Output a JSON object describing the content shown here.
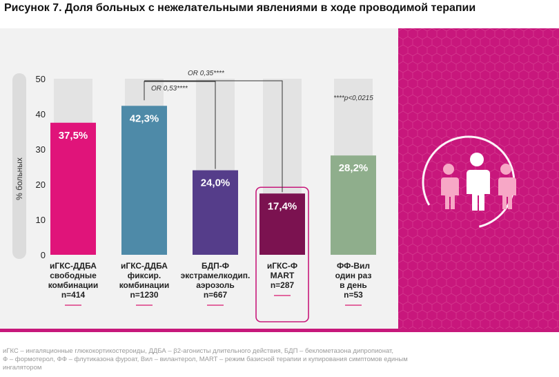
{
  "title": "Рисунок 7. Доля больных с нежелательными явлениями в ходе проводимой терапии",
  "chart_data": {
    "type": "bar",
    "ylabel": "% больных",
    "ylim": [
      0,
      50
    ],
    "yticks": [
      0,
      10,
      20,
      30,
      40,
      50
    ],
    "categories": [
      [
        "иГКС-ДДБА",
        "свободные",
        "комбинации",
        "n=414"
      ],
      [
        "иГКС-ДДБА",
        "фиксир.",
        "комбинации",
        "n=1230"
      ],
      [
        "БДП-Ф",
        "экстрамелкодип.",
        "аэрозоль",
        "n=667"
      ],
      [
        "иГКС-Ф",
        "MART",
        "n=287"
      ],
      [
        "ФФ-Вил",
        "один раз",
        "в день",
        "n=53"
      ]
    ],
    "values": [
      37.5,
      42.3,
      24.0,
      17.4,
      28.2
    ],
    "value_labels": [
      "37,5%",
      "42,3%",
      "24,0%",
      "17,4%",
      "28,2%"
    ],
    "colors": [
      "#e0147a",
      "#4e8aa8",
      "#553d8a",
      "#7b1250",
      "#8fae8c"
    ],
    "highlighted": 3,
    "annotations": {
      "or1": "OR 0,53****",
      "or2": "OR 0,35****",
      "pvalue": "****p<0,0215"
    }
  },
  "footnote": {
    "line1": "иГКС – ингаляционные глюкокортикостероиды, ДДБА – β2-агонисты длительного действия, БДП – беклометазона дипропионат,",
    "line2": "Ф – формотерол, ФФ – флутиказона фуроат, Вил – вилантерол, MART – режим базисной терапии и купирования симптомов единым",
    "line3": "ингалятором"
  },
  "colors": {
    "accent": "#c7187b",
    "panel_bg": "#f2f2f2"
  },
  "icons": {
    "right_panel": "people-group-icon"
  }
}
